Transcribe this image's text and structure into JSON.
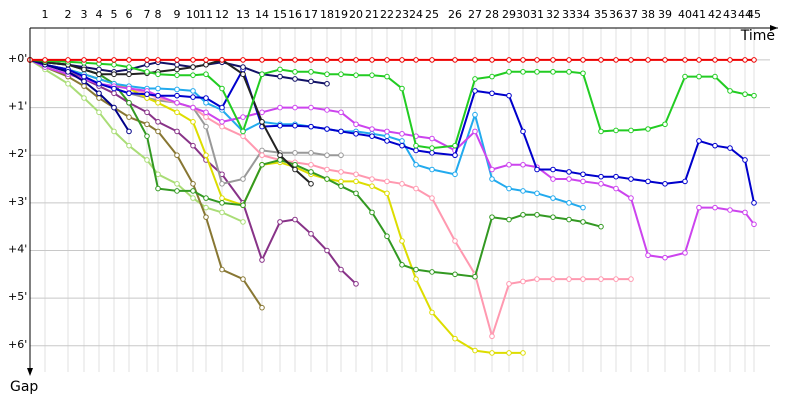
{
  "chart_data": {
    "type": "line",
    "x_label": "Time",
    "y_label": "Gap",
    "x": [
      0,
      1.5,
      3.8,
      5.4,
      6.9,
      8.4,
      9.9,
      11.7,
      12.8,
      14.7,
      16.3,
      17.6,
      19.2,
      21.3,
      23.2,
      25.0,
      26.5,
      28.1,
      29.7,
      31.1,
      32.6,
      34.2,
      35.7,
      37.2,
      38.6,
      40.2,
      42.5,
      44.5,
      46.2,
      47.9,
      49.3,
      50.7,
      52.3,
      53.9,
      55.3,
      57.1,
      58.6,
      60.1,
      61.8,
      63.5,
      65.5,
      66.9,
      68.5,
      70.0,
      71.5,
      72.4
    ],
    "xlim": [
      0,
      74
    ],
    "xticks": [
      {
        "value": 1.5,
        "label": "1"
      },
      {
        "value": 3.8,
        "label": "2"
      },
      {
        "value": 5.4,
        "label": "3"
      },
      {
        "value": 6.9,
        "label": "4"
      },
      {
        "value": 8.4,
        "label": "5"
      },
      {
        "value": 9.9,
        "label": "6"
      },
      {
        "value": 11.7,
        "label": "7"
      },
      {
        "value": 12.8,
        "label": "8"
      },
      {
        "value": 14.7,
        "label": "9"
      },
      {
        "value": 16.3,
        "label": "10"
      },
      {
        "value": 17.6,
        "label": "11"
      },
      {
        "value": 19.2,
        "label": "12"
      },
      {
        "value": 21.3,
        "label": "13"
      },
      {
        "value": 23.2,
        "label": "14"
      },
      {
        "value": 25.0,
        "label": "15"
      },
      {
        "value": 26.5,
        "label": "16"
      },
      {
        "value": 28.1,
        "label": "17"
      },
      {
        "value": 29.7,
        "label": "18"
      },
      {
        "value": 31.1,
        "label": "19"
      },
      {
        "value": 32.6,
        "label": "20"
      },
      {
        "value": 34.2,
        "label": "21"
      },
      {
        "value": 35.7,
        "label": "22"
      },
      {
        "value": 37.2,
        "label": "23"
      },
      {
        "value": 38.6,
        "label": "24"
      },
      {
        "value": 40.2,
        "label": "25"
      },
      {
        "value": 42.5,
        "label": "26"
      },
      {
        "value": 44.5,
        "label": "27"
      },
      {
        "value": 46.2,
        "label": "28"
      },
      {
        "value": 47.9,
        "label": "29"
      },
      {
        "value": 49.3,
        "label": "30"
      },
      {
        "value": 50.7,
        "label": "31"
      },
      {
        "value": 52.3,
        "label": "32"
      },
      {
        "value": 53.9,
        "label": "33"
      },
      {
        "value": 55.3,
        "label": "34"
      },
      {
        "value": 57.1,
        "label": "35"
      },
      {
        "value": 58.6,
        "label": "36"
      },
      {
        "value": 60.1,
        "label": "37"
      },
      {
        "value": 61.8,
        "label": "38"
      },
      {
        "value": 63.5,
        "label": "39"
      },
      {
        "value": 65.5,
        "label": "40"
      },
      {
        "value": 66.9,
        "label": "41"
      },
      {
        "value": 68.5,
        "label": "42"
      },
      {
        "value": 70.0,
        "label": "43"
      },
      {
        "value": 71.5,
        "label": "44"
      },
      {
        "value": 72.4,
        "label": "45"
      }
    ],
    "ylim": [
      -0.67,
      6.55
    ],
    "yticks": [
      {
        "value": 0,
        "label": "+0'"
      },
      {
        "value": 1,
        "label": "+1'"
      },
      {
        "value": 2,
        "label": "+2'"
      },
      {
        "value": 3,
        "label": "+3'"
      },
      {
        "value": 4,
        "label": "+4'"
      },
      {
        "value": 5,
        "label": "+5'"
      },
      {
        "value": 6,
        "label": "+6'"
      }
    ],
    "grid": true,
    "series": [
      {
        "color": "#aadd77",
        "values": [
          0,
          0.2,
          0.5,
          0.8,
          1.1,
          1.5,
          1.8,
          2.1,
          2.4,
          2.6,
          2.9,
          3.1,
          3.2,
          3.4,
          null,
          null,
          null,
          null,
          null,
          null,
          null,
          null,
          null,
          null,
          null,
          null,
          null,
          null,
          null,
          null,
          null,
          null,
          null,
          null,
          null,
          null,
          null,
          null,
          null,
          null,
          null,
          null,
          null,
          null,
          null,
          null
        ]
      },
      {
        "color": "#887733",
        "values": [
          0,
          0.15,
          0.35,
          0.55,
          0.8,
          1.0,
          1.2,
          1.35,
          1.5,
          2.0,
          2.6,
          3.3,
          4.4,
          4.6,
          5.2,
          null,
          null,
          null,
          null,
          null,
          null,
          null,
          null,
          null,
          null,
          null,
          null,
          null,
          null,
          null,
          null,
          null,
          null,
          null,
          null,
          null,
          null,
          null,
          null,
          null,
          null,
          null,
          null,
          null,
          null,
          null
        ]
      },
      {
        "color": "#883388",
        "values": [
          0,
          0.1,
          0.25,
          0.4,
          0.55,
          0.7,
          0.9,
          1.1,
          1.3,
          1.5,
          1.8,
          2.1,
          2.4,
          3.0,
          4.2,
          3.4,
          3.35,
          3.65,
          4.0,
          4.4,
          4.7,
          null,
          null,
          null,
          null,
          null,
          null,
          null,
          null,
          null,
          null,
          null,
          null,
          null,
          null,
          null,
          null,
          null,
          null,
          null,
          null,
          null,
          null,
          null,
          null,
          null
        ]
      },
      {
        "color": "#999999",
        "values": [
          0,
          0.1,
          0.2,
          0.35,
          0.5,
          0.6,
          0.7,
          0.8,
          0.85,
          0.9,
          1.0,
          1.4,
          2.6,
          2.5,
          1.9,
          1.95,
          1.95,
          1.95,
          2.0,
          2.0,
          null,
          null,
          null,
          null,
          null,
          null,
          null,
          null,
          null,
          null,
          null,
          null,
          null,
          null,
          null,
          null,
          null,
          null,
          null,
          null,
          null,
          null,
          null,
          null,
          null,
          null
        ]
      },
      {
        "color": "#ff99b0",
        "values": [
          0,
          0.1,
          0.2,
          0.3,
          0.4,
          0.5,
          0.6,
          0.7,
          0.8,
          0.9,
          1.0,
          1.2,
          1.4,
          1.6,
          2.0,
          2.1,
          2.15,
          2.2,
          2.3,
          2.35,
          2.4,
          2.5,
          2.55,
          2.6,
          2.7,
          2.9,
          3.8,
          4.5,
          5.8,
          4.7,
          4.65,
          4.6,
          4.6,
          4.6,
          4.6,
          4.6,
          4.6,
          4.6,
          null,
          null,
          null,
          null,
          null,
          null,
          null,
          null
        ]
      },
      {
        "color": "#dddd00",
        "values": [
          0,
          0.1,
          0.2,
          0.3,
          0.4,
          0.5,
          0.6,
          0.8,
          0.9,
          1.1,
          1.3,
          2.0,
          2.9,
          3.05,
          2.2,
          2.15,
          2.25,
          2.4,
          2.5,
          2.55,
          2.55,
          2.65,
          2.8,
          3.8,
          4.6,
          5.3,
          5.85,
          6.1,
          6.15,
          6.15,
          6.15,
          null,
          null,
          null,
          null,
          null,
          null,
          null,
          null,
          null,
          null,
          null,
          null,
          null,
          null,
          null
        ]
      },
      {
        "color": "#339922",
        "values": [
          0,
          0.05,
          0.1,
          0.2,
          0.3,
          0.5,
          0.9,
          1.6,
          2.7,
          2.75,
          2.75,
          2.9,
          3.0,
          3.05,
          2.2,
          2.1,
          2.2,
          2.35,
          2.5,
          2.65,
          2.8,
          3.2,
          3.7,
          4.3,
          4.4,
          4.45,
          4.5,
          4.55,
          3.3,
          3.35,
          3.25,
          3.25,
          3.3,
          3.35,
          3.4,
          3.5,
          null,
          null,
          null,
          null,
          null,
          null,
          null,
          null,
          null,
          null
        ]
      },
      {
        "color": "#22aaee",
        "values": [
          0,
          0.1,
          0.2,
          0.3,
          0.4,
          0.5,
          0.55,
          0.6,
          0.6,
          0.62,
          0.65,
          0.9,
          1.05,
          1.5,
          1.3,
          1.35,
          1.35,
          1.4,
          1.45,
          1.5,
          1.5,
          1.55,
          1.6,
          1.7,
          2.2,
          2.3,
          2.4,
          1.15,
          2.5,
          2.7,
          2.75,
          2.8,
          2.9,
          3.0,
          3.1,
          null,
          null,
          null,
          null,
          null,
          null,
          null,
          null,
          null,
          null,
          null
        ]
      },
      {
        "color": "#cc44ee",
        "values": [
          0,
          0.15,
          0.3,
          0.4,
          0.5,
          0.55,
          0.6,
          0.65,
          0.75,
          0.9,
          1.0,
          1.1,
          1.3,
          1.2,
          1.1,
          1.0,
          1.0,
          1.0,
          1.05,
          1.1,
          1.35,
          1.45,
          1.5,
          1.55,
          1.6,
          1.65,
          1.9,
          1.5,
          2.3,
          2.2,
          2.2,
          2.25,
          2.5,
          2.5,
          2.55,
          2.6,
          2.7,
          2.9,
          4.1,
          4.15,
          4.05,
          3.1,
          3.1,
          3.15,
          3.2,
          3.45
        ]
      },
      {
        "color": "#0000cc",
        "values": [
          0,
          0.1,
          0.2,
          0.35,
          0.5,
          0.6,
          0.7,
          0.72,
          0.75,
          0.75,
          0.78,
          0.8,
          1.0,
          0.2,
          1.4,
          1.38,
          1.38,
          1.4,
          1.45,
          1.5,
          1.55,
          1.6,
          1.7,
          1.8,
          1.9,
          1.95,
          2.0,
          0.65,
          0.7,
          0.75,
          1.5,
          2.3,
          2.3,
          2.35,
          2.4,
          2.45,
          2.45,
          2.5,
          2.55,
          2.6,
          2.55,
          1.7,
          1.8,
          1.85,
          2.1,
          3.0
        ]
      },
      {
        "color": "#000088",
        "values": [
          0,
          0.1,
          0.25,
          0.45,
          0.7,
          1.0,
          1.5,
          null,
          null,
          null,
          null,
          null,
          null,
          null,
          null,
          null,
          null,
          null,
          null,
          null,
          null,
          null,
          null,
          null,
          null,
          null,
          null,
          null,
          null,
          null,
          null,
          null,
          null,
          null,
          null,
          null,
          null,
          null,
          null,
          null,
          null,
          null,
          null,
          null,
          null,
          null
        ]
      },
      {
        "color": "#111166",
        "values": [
          0,
          0.05,
          0.1,
          0.15,
          0.2,
          0.25,
          0.2,
          0.1,
          0.05,
          0.1,
          0.15,
          0.1,
          0.05,
          0.15,
          0.3,
          0.35,
          0.4,
          0.45,
          0.5,
          null,
          null,
          null,
          null,
          null,
          null,
          null,
          null,
          null,
          null,
          null,
          null,
          null,
          null,
          null,
          null,
          null,
          null,
          null,
          null,
          null,
          null,
          null,
          null,
          null,
          null,
          null
        ]
      },
      {
        "color": "#222222",
        "values": [
          0,
          0.05,
          0.1,
          0.2,
          0.3,
          0.3,
          0.3,
          0.28,
          0.25,
          0.2,
          0.15,
          0.1,
          0.0,
          0.3,
          1.3,
          2.0,
          2.3,
          2.6,
          null,
          null,
          null,
          null,
          null,
          null,
          null,
          null,
          null,
          null,
          null,
          null,
          null,
          null,
          null,
          null,
          null,
          null,
          null,
          null,
          null,
          null,
          null,
          null,
          null,
          null,
          null,
          null
        ]
      },
      {
        "color": "#22cc22",
        "values": [
          0,
          0.02,
          0.04,
          0.06,
          0.08,
          0.1,
          0.15,
          0.25,
          0.3,
          0.32,
          0.32,
          0.3,
          0.6,
          1.5,
          0.3,
          0.2,
          0.25,
          0.25,
          0.3,
          0.3,
          0.32,
          0.32,
          0.35,
          0.6,
          1.8,
          1.85,
          1.8,
          0.4,
          0.35,
          0.25,
          0.25,
          0.25,
          0.25,
          0.25,
          0.28,
          1.5,
          1.48,
          1.48,
          1.45,
          1.35,
          0.35,
          0.35,
          0.35,
          0.65,
          0.72,
          0.75
        ]
      },
      {
        "color": "#ee0000",
        "values": [
          0,
          0,
          0,
          0,
          0,
          0,
          0,
          0,
          0,
          0,
          0,
          0,
          0,
          0,
          0,
          0,
          0,
          0,
          0,
          0,
          0,
          0,
          0,
          0,
          0,
          0,
          0,
          0,
          0,
          0,
          0,
          0,
          0,
          0,
          0,
          0,
          0,
          0,
          0,
          0,
          0,
          0,
          0,
          0,
          0,
          0
        ]
      }
    ]
  }
}
